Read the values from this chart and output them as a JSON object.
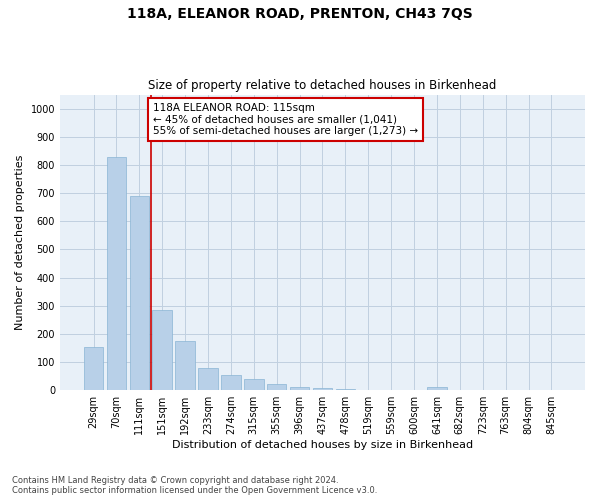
{
  "title": "118A, ELEANOR ROAD, PRENTON, CH43 7QS",
  "subtitle": "Size of property relative to detached houses in Birkenhead",
  "xlabel": "Distribution of detached houses by size in Birkenhead",
  "ylabel": "Number of detached properties",
  "footnote1": "Contains HM Land Registry data © Crown copyright and database right 2024.",
  "footnote2": "Contains public sector information licensed under the Open Government Licence v3.0.",
  "categories": [
    "29sqm",
    "70sqm",
    "111sqm",
    "151sqm",
    "192sqm",
    "233sqm",
    "274sqm",
    "315sqm",
    "355sqm",
    "396sqm",
    "437sqm",
    "478sqm",
    "519sqm",
    "559sqm",
    "600sqm",
    "641sqm",
    "682sqm",
    "723sqm",
    "763sqm",
    "804sqm",
    "845sqm"
  ],
  "values": [
    152,
    829,
    690,
    284,
    174,
    78,
    54,
    41,
    22,
    12,
    8,
    5,
    0,
    0,
    0,
    10,
    0,
    0,
    0,
    0,
    0
  ],
  "bar_color": "#b8d0e8",
  "bar_edge_color": "#8ab4d4",
  "vline_x": 2.5,
  "vline_color": "#cc0000",
  "annotation_text": "118A ELEANOR ROAD: 115sqm\n← 45% of detached houses are smaller (1,041)\n55% of semi-detached houses are larger (1,273) →",
  "annotation_box_color": "#ffffff",
  "annotation_box_edge": "#cc0000",
  "ylim": [
    0,
    1050
  ],
  "yticks": [
    0,
    100,
    200,
    300,
    400,
    500,
    600,
    700,
    800,
    900,
    1000
  ],
  "background_color": "#ffffff",
  "plot_bg_color": "#e8f0f8",
  "grid_color": "#c0d0e0",
  "title_fontsize": 10,
  "subtitle_fontsize": 8.5,
  "ylabel_fontsize": 8,
  "xlabel_fontsize": 8,
  "tick_fontsize": 7,
  "footnote_fontsize": 6,
  "ann_fontsize": 7.5
}
